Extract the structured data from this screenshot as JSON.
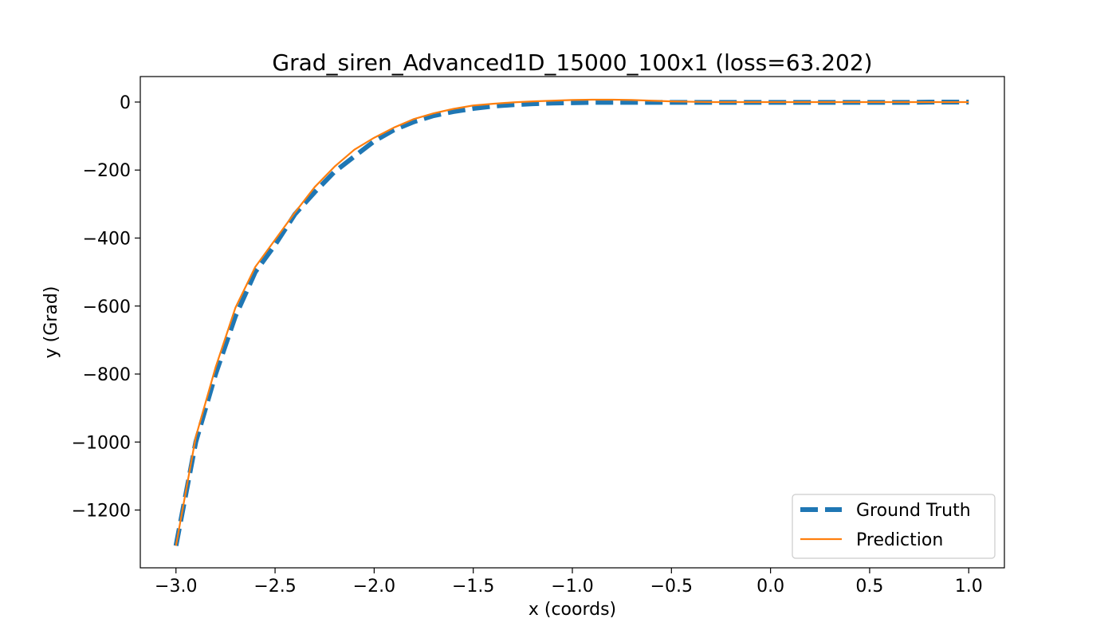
{
  "chart_data": {
    "type": "line",
    "title": "Grad_siren_Advanced1D_15000_100x1 (loss=63.202)",
    "xlabel": "x (coords)",
    "ylabel": "y (Grad)",
    "xlim": [
      -3.18,
      1.18
    ],
    "ylim": [
      -1370,
      75
    ],
    "xticks": [
      -3.0,
      -2.5,
      -2.0,
      -1.5,
      -1.0,
      -0.5,
      0.0,
      0.5,
      1.0
    ],
    "xtick_labels": [
      "−3.0",
      "−2.5",
      "−2.0",
      "−1.5",
      "−1.0",
      "−0.5",
      "0.0",
      "0.5",
      "1.0"
    ],
    "yticks": [
      0,
      -200,
      -400,
      -600,
      -800,
      -1000,
      -1200
    ],
    "ytick_labels": [
      "0",
      "−200",
      "−400",
      "−600",
      "−800",
      "−1000",
      "−1200"
    ],
    "grid": false,
    "legend_position": "lower-right",
    "series": [
      {
        "name": "Ground Truth",
        "color": "#1f77b4",
        "style": "dashed",
        "x": [
          -3.0,
          -2.9,
          -2.8,
          -2.7,
          -2.6,
          -2.5,
          -2.4,
          -2.3,
          -2.2,
          -2.1,
          -2.0,
          -1.9,
          -1.8,
          -1.7,
          -1.6,
          -1.5,
          -1.4,
          -1.3,
          -1.2,
          -1.1,
          -1.0,
          -0.9,
          -0.8,
          -0.7,
          -0.6,
          -0.5,
          -0.4,
          -0.3,
          -0.2,
          -0.1,
          0.0,
          0.1,
          0.2,
          0.3,
          0.4,
          0.5,
          0.6,
          0.7,
          0.8,
          0.9,
          1.0
        ],
        "y": [
          -1305,
          -1000,
          -800,
          -630,
          -500,
          -420,
          -330,
          -265,
          -205,
          -160,
          -115,
          -82,
          -58,
          -40,
          -28,
          -19,
          -12,
          -8,
          -5,
          -3,
          -2,
          -1,
          -1,
          -1,
          -1,
          -1,
          -1,
          -1,
          -1,
          -1,
          -1,
          -1,
          -1,
          -1,
          -1,
          -1,
          -1,
          -1,
          0,
          0,
          0
        ]
      },
      {
        "name": "Prediction",
        "color": "#ff7f0e",
        "style": "solid",
        "x": [
          -3.0,
          -2.9,
          -2.8,
          -2.7,
          -2.6,
          -2.5,
          -2.4,
          -2.3,
          -2.2,
          -2.1,
          -2.0,
          -1.9,
          -1.8,
          -1.7,
          -1.6,
          -1.5,
          -1.4,
          -1.3,
          -1.2,
          -1.1,
          -1.0,
          -0.9,
          -0.8,
          -0.7,
          -0.6,
          -0.5,
          -0.4,
          -0.3,
          -0.2,
          -0.1,
          0.0,
          0.1,
          0.2,
          0.3,
          0.4,
          0.5,
          0.6,
          0.7,
          0.8,
          0.9,
          1.0
        ],
        "y": [
          -1305,
          -985,
          -780,
          -605,
          -485,
          -405,
          -325,
          -250,
          -190,
          -140,
          -105,
          -75,
          -50,
          -33,
          -20,
          -10,
          -5,
          -1,
          2,
          4,
          6,
          7,
          7,
          6,
          4,
          2,
          1,
          0,
          0,
          0,
          0,
          0,
          0,
          0,
          0,
          0,
          0,
          0,
          0,
          0,
          0
        ]
      }
    ]
  }
}
